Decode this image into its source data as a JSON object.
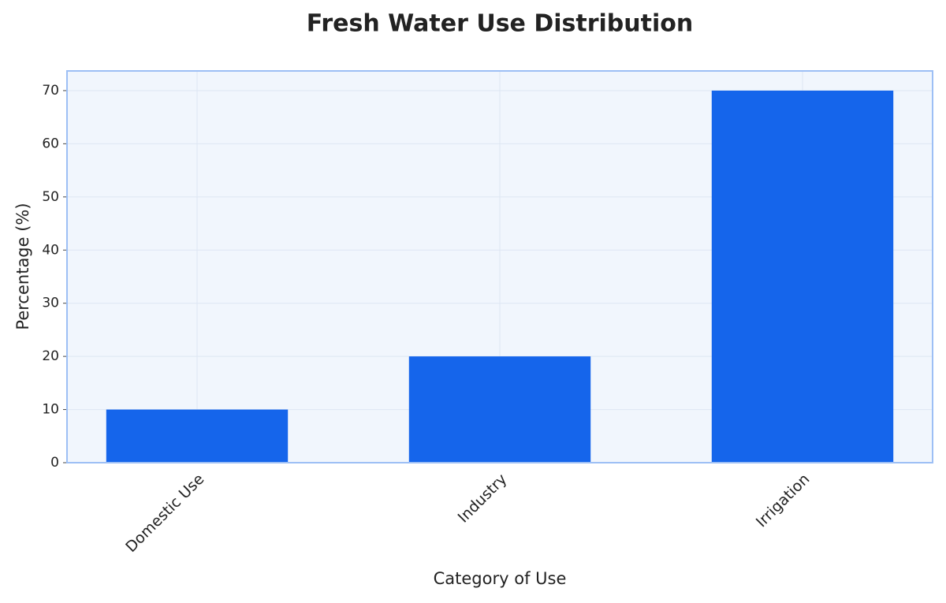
{
  "chart_data": {
    "type": "bar",
    "title": "Fresh Water Use Distribution",
    "x_label": "Category of Use",
    "y_label": "Percentage (%)",
    "categories": [
      "Domestic Use",
      "Industry",
      "Irrigation"
    ],
    "values": [
      10,
      20,
      70
    ],
    "color": "#1565eb",
    "ylim": [
      0,
      73.7
    ],
    "yticks": [
      0,
      10,
      20,
      30,
      40,
      50,
      60,
      70
    ],
    "grid": true
  }
}
